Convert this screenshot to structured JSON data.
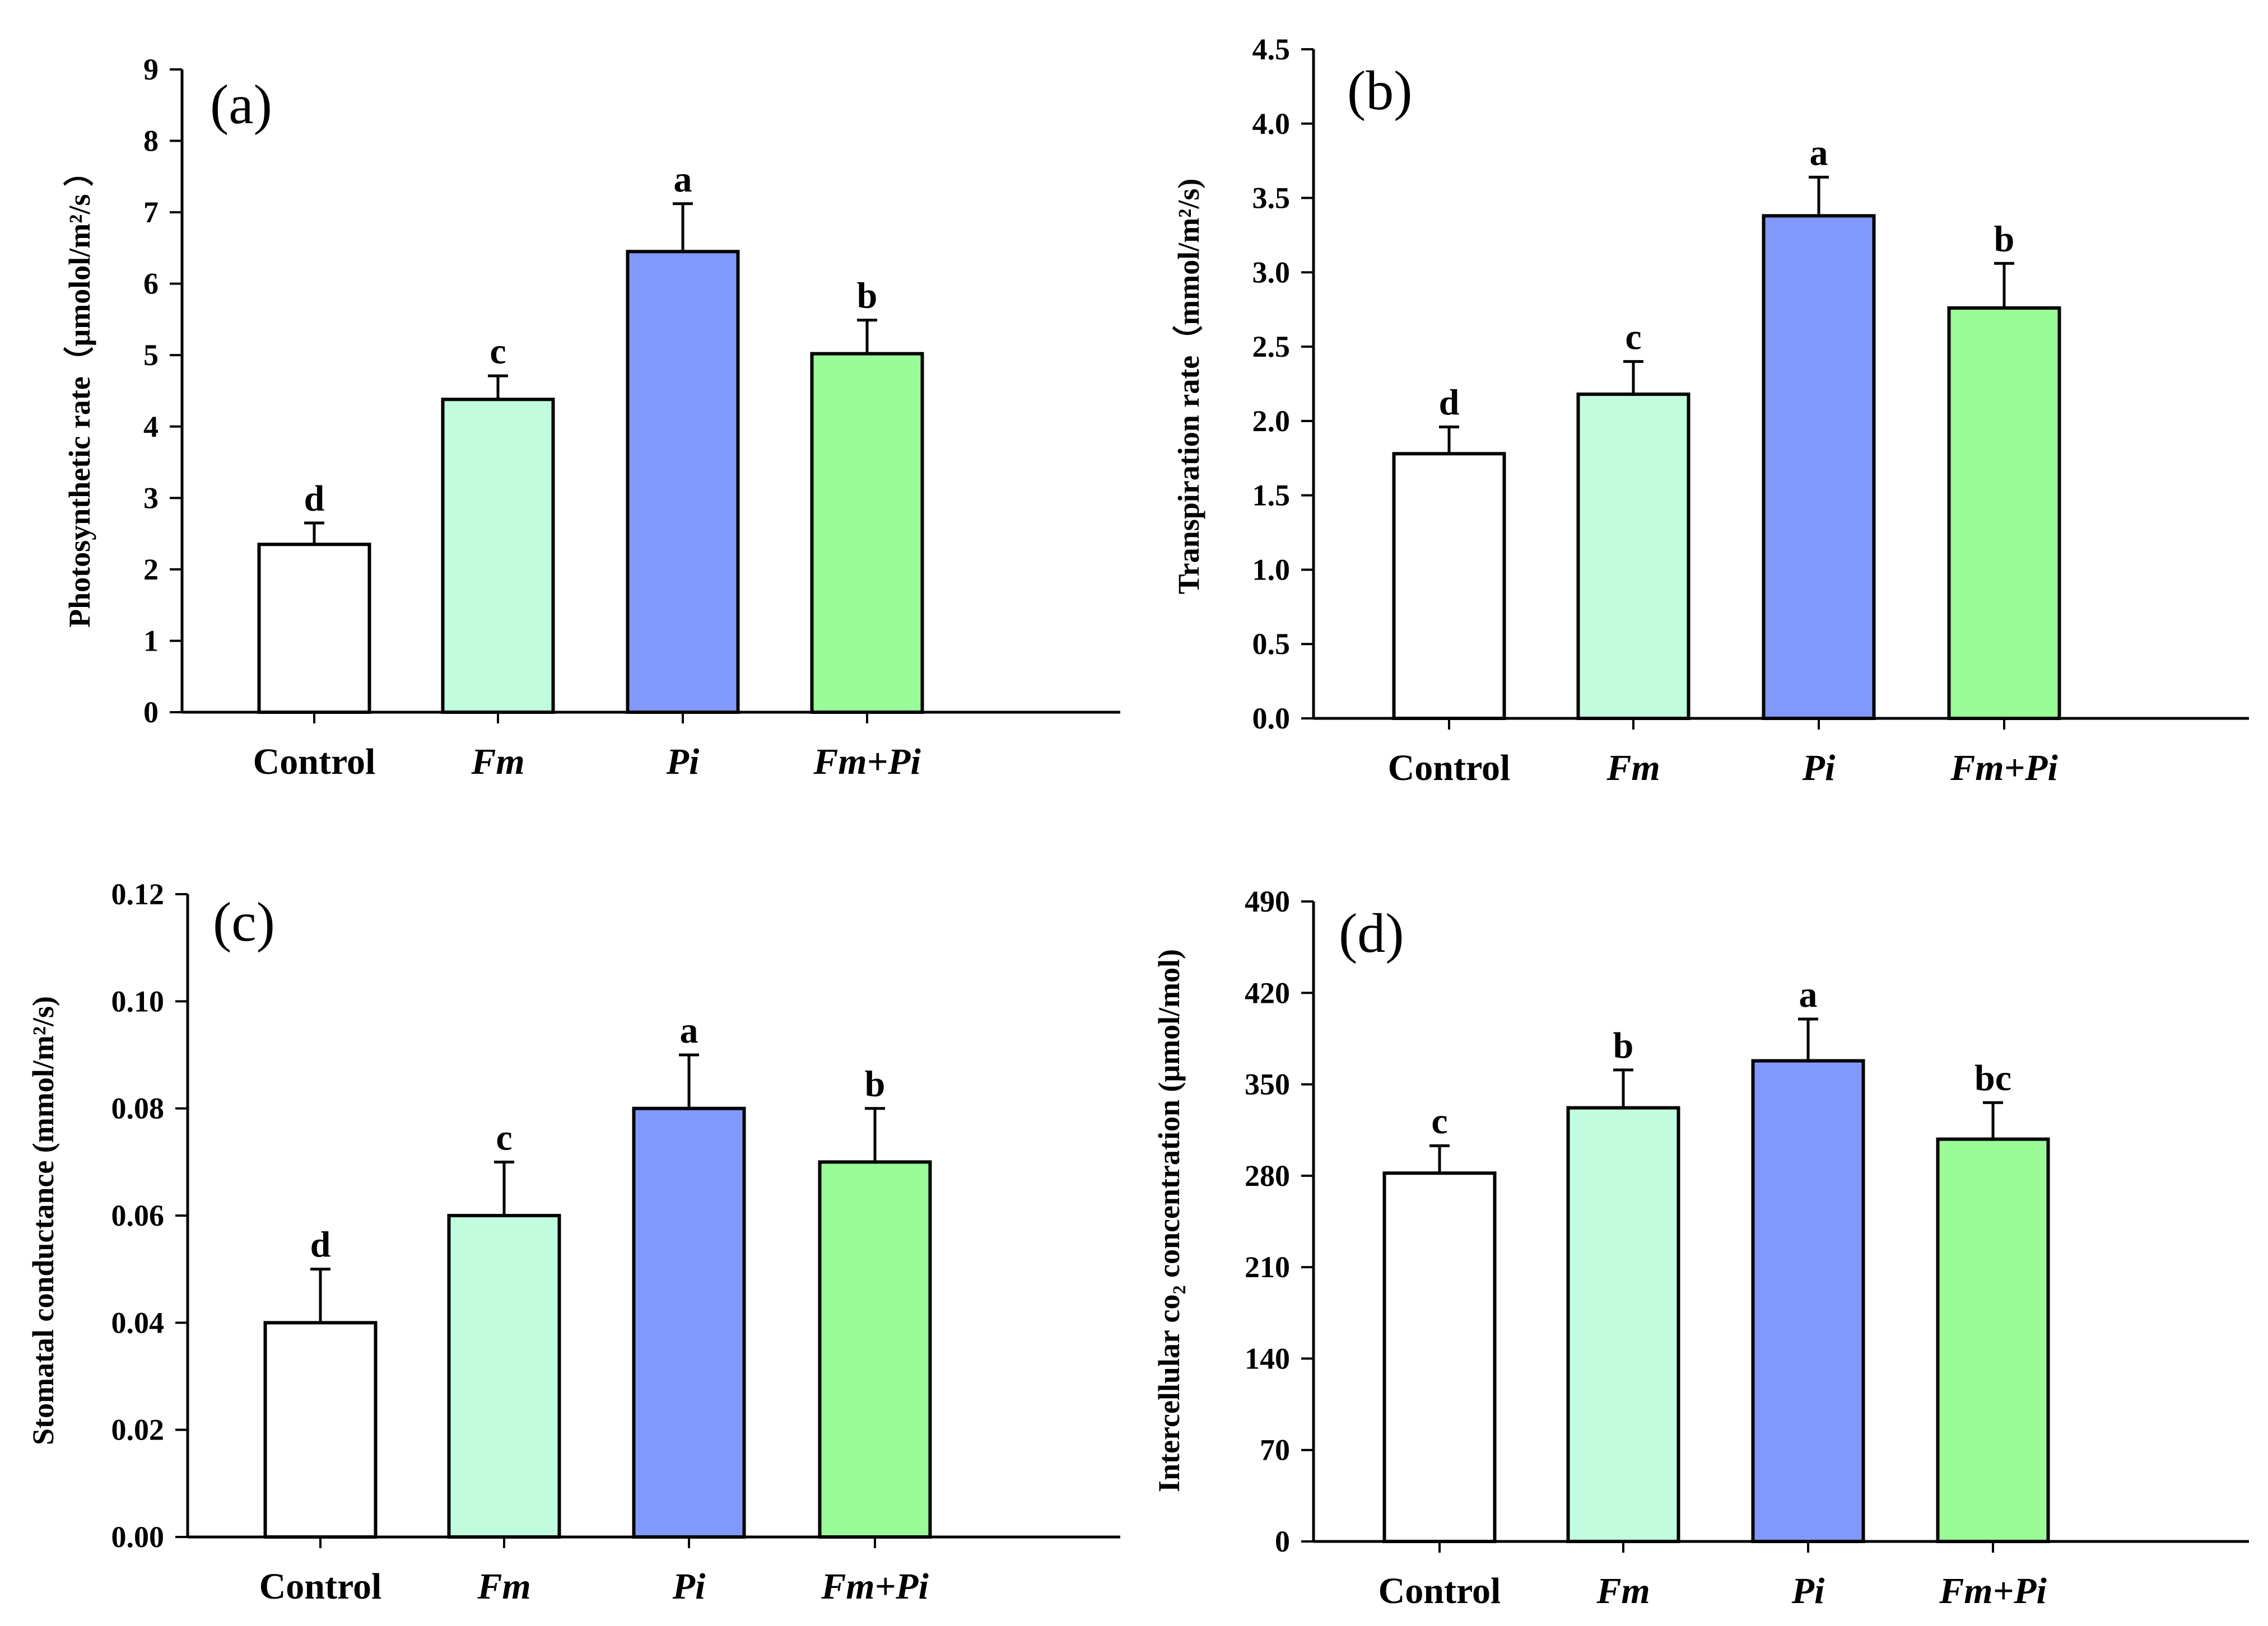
{
  "chart_data": [
    {
      "type": "bar",
      "panel": "(a)",
      "categories": [
        "Control",
        "Fm",
        "Pi",
        "Fm+Pi"
      ],
      "italic": [
        false,
        true,
        true,
        true
      ],
      "values": [
        2.35,
        4.38,
        6.45,
        5.02
      ],
      "errors": [
        0.3,
        0.33,
        0.67,
        0.47
      ],
      "significance": [
        "d",
        "c",
        "a",
        "b"
      ],
      "colors": [
        "#ffffff",
        "#c1fcdf",
        "#8199fc",
        "#9afc96"
      ],
      "ylabel": "Photosynthetic rate（μmolol/m²/s ）",
      "ylim": [
        0,
        9
      ],
      "yticks": [
        "0",
        "1",
        "2",
        "3",
        "4",
        "5",
        "6",
        "7",
        "8",
        "9"
      ]
    },
    {
      "type": "bar",
      "panel": "(b)",
      "categories": [
        "Control",
        "Fm",
        "Pi",
        "Fm+Pi"
      ],
      "italic": [
        false,
        true,
        true,
        true
      ],
      "values": [
        1.78,
        2.18,
        3.38,
        2.76
      ],
      "errors": [
        0.18,
        0.22,
        0.26,
        0.3
      ],
      "significance": [
        "d",
        "c",
        "a",
        "b"
      ],
      "colors": [
        "#ffffff",
        "#c1fcdf",
        "#8199fc",
        "#9afc96"
      ],
      "ylabel": "Transpiration rate（mmol/m²/s)",
      "ylim": [
        0,
        4.5
      ],
      "yticks": [
        "0.0",
        "0.5",
        "1.0",
        "1.5",
        "2.0",
        "2.5",
        "3.0",
        "3.5",
        "4.0",
        "4.5"
      ]
    },
    {
      "type": "bar",
      "panel": "(c)",
      "categories": [
        "Control",
        "Fm",
        "Pi",
        "Fm+Pi"
      ],
      "italic": [
        false,
        true,
        true,
        true
      ],
      "values": [
        0.04,
        0.06,
        0.08,
        0.07
      ],
      "errors": [
        0.01,
        0.01,
        0.01,
        0.01
      ],
      "significance": [
        "d",
        "c",
        "a",
        "b"
      ],
      "colors": [
        "#ffffff",
        "#c1fcdf",
        "#8199fc",
        "#9afc96"
      ],
      "ylabel": "Stomatal conductance (mmol/m²/s)",
      "ylim": [
        0,
        0.12
      ],
      "yticks": [
        "0.00",
        "0.02",
        "0.04",
        "0.06",
        "0.08",
        "0.10",
        "0.12"
      ]
    },
    {
      "type": "bar",
      "panel": "(d)",
      "categories": [
        "Control",
        "Fm",
        "Pi",
        "Fm+Pi"
      ],
      "italic": [
        false,
        true,
        true,
        true
      ],
      "values": [
        282,
        332,
        368,
        308
      ],
      "errors": [
        21,
        29,
        32,
        28
      ],
      "significance": [
        "c",
        "b",
        "a",
        "bc"
      ],
      "colors": [
        "#ffffff",
        "#c1fcdf",
        "#8199fc",
        "#9afc96"
      ],
      "ylabel": "Intercellular co₂ concentration (μmol/mol)",
      "ylim": [
        0,
        490
      ],
      "yticks": [
        "0",
        "70",
        "140",
        "210",
        "280",
        "350",
        "420",
        "490"
      ]
    }
  ]
}
